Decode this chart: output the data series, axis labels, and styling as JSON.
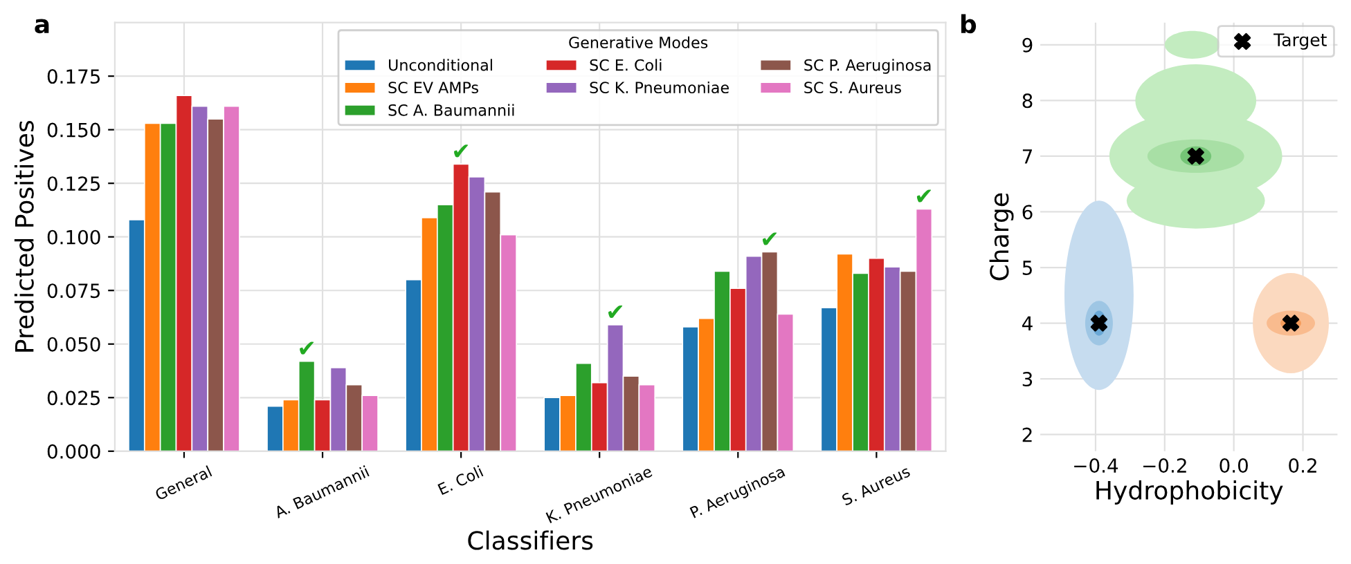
{
  "chart_data": [
    {
      "type": "bar",
      "xlabel": "Classifiers",
      "ylabel": "Predicted Positives",
      "legend_title": "Generative Modes",
      "legend": "top right",
      "grid": true,
      "categories": [
        "General",
        "A. Baumannii",
        "E. Coli",
        "K. Pneumoniae",
        "P. Aeruginosa",
        "S. Aureus"
      ],
      "ylim": [
        0,
        0.2
      ],
      "yticks": [
        {
          "value": 0,
          "label": "0.000"
        },
        {
          "value": 0.025,
          "label": "0.025"
        },
        {
          "value": 0.05,
          "label": "0.050"
        },
        {
          "value": 0.075,
          "label": "0.075"
        },
        {
          "value": 0.1,
          "label": "0.100"
        },
        {
          "value": 0.125,
          "label": "0.125"
        },
        {
          "value": 0.15,
          "label": "0.150"
        },
        {
          "value": 0.175,
          "label": "0.175"
        }
      ],
      "series": [
        {
          "name": "Unconditional",
          "color": "#1f77b4",
          "values": [
            0.108,
            0.021,
            0.08,
            0.025,
            0.058,
            0.067
          ]
        },
        {
          "name": "SC EV AMPs",
          "color": "#ff7f0e",
          "values": [
            0.153,
            0.024,
            0.109,
            0.026,
            0.062,
            0.092
          ]
        },
        {
          "name": "SC A. Baumannii",
          "color": "#2ca02c",
          "values": [
            0.153,
            0.042,
            0.115,
            0.041,
            0.084,
            0.083
          ]
        },
        {
          "name": "SC E. Coli",
          "color": "#d62728",
          "values": [
            0.166,
            0.024,
            0.134,
            0.032,
            0.076,
            0.09
          ]
        },
        {
          "name": "SC K. Pneumoniae",
          "color": "#9467bd",
          "values": [
            0.161,
            0.039,
            0.128,
            0.059,
            0.091,
            0.086
          ]
        },
        {
          "name": "SC P. Aeruginosa",
          "color": "#8c564b",
          "values": [
            0.155,
            0.031,
            0.121,
            0.035,
            0.093,
            0.084
          ]
        },
        {
          "name": "SC S. Aureus",
          "color": "#e377c2",
          "values": [
            0.161,
            0.026,
            0.101,
            0.031,
            0.064,
            0.113
          ]
        }
      ],
      "annotations": [
        "a",
        "✔",
        "✔",
        "✔",
        "✔",
        "✔"
      ]
    },
    {
      "type": "scatter",
      "xlabel": "Hydrophobicity",
      "ylabel": "Charge",
      "legend": "top right",
      "grid": true,
      "marker": "cross",
      "xlim": [
        -0.56,
        0.3
      ],
      "ylim": [
        1.7,
        9.4
      ],
      "xticks": [
        -0.4,
        -0.2,
        {
          "value": 0,
          "label": "0.0"
        },
        0.2
      ],
      "yticks": [
        2,
        3,
        4,
        5,
        6,
        7,
        8,
        9
      ],
      "series": [
        {
          "name": "Target",
          "color": "#000000",
          "x": [
            -0.39,
            -0.11,
            0.165
          ],
          "values": [
            4,
            7,
            4
          ]
        }
      ],
      "annotations": [
        "b"
      ]
    }
  ]
}
